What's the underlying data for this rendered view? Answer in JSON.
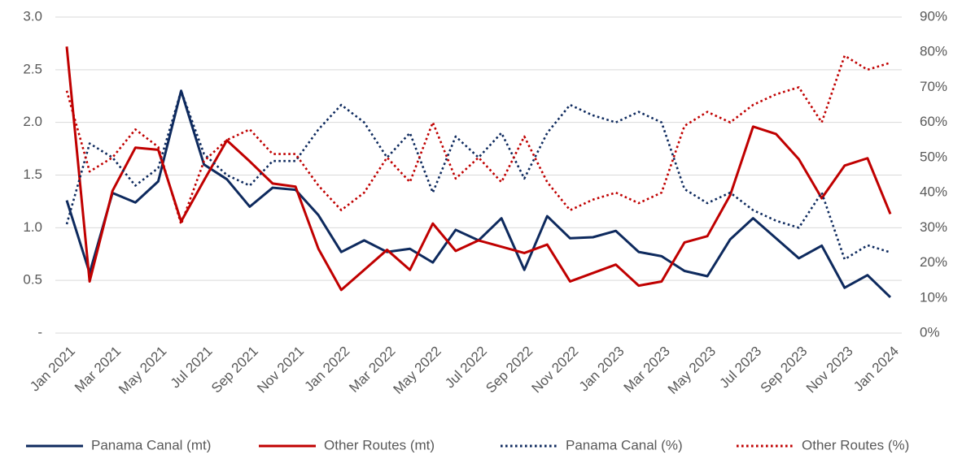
{
  "chart_data": {
    "type": "line",
    "categories": [
      "Jan 2021",
      null,
      "Mar 2021",
      null,
      "May 2021",
      null,
      "Jul 2021",
      null,
      "Sep 2021",
      null,
      "Nov 2021",
      null,
      "Jan 2022",
      null,
      "Mar 2022",
      null,
      "May 2022",
      null,
      "Jul 2022",
      null,
      "Sep 2022",
      null,
      "Nov 2022",
      null,
      "Jan 2023",
      null,
      "Mar 2023",
      null,
      "May 2023",
      null,
      "Jul 2023",
      null,
      "Sep 2023",
      null,
      "Nov 2023",
      null,
      "Jan 2024"
    ],
    "series": [
      {
        "name": "Panama Canal (mt)",
        "color": "#0e2a5e",
        "style": "solid",
        "values": [
          1.26,
          0.57,
          1.33,
          1.24,
          1.44,
          2.3,
          1.6,
          1.46,
          1.2,
          1.38,
          1.36,
          1.12,
          0.77,
          0.88,
          0.77,
          0.8,
          0.67,
          0.98,
          0.88,
          1.09,
          0.6,
          1.11,
          0.9,
          0.91,
          0.97,
          0.77,
          0.73,
          0.59,
          0.54,
          0.89,
          1.09,
          0.9,
          0.71,
          0.83,
          0.43,
          0.55,
          0.34
        ]
      },
      {
        "name": "Other Routes (mt)",
        "color": "#c00000",
        "style": "solid",
        "values": [
          2.72,
          0.49,
          1.35,
          1.76,
          1.74,
          1.06,
          1.45,
          1.83,
          1.63,
          1.42,
          1.39,
          0.8,
          0.41,
          0.6,
          0.79,
          0.6,
          1.04,
          0.78,
          0.88,
          0.82,
          0.76,
          0.84,
          0.49,
          0.57,
          0.65,
          0.45,
          0.49,
          0.86,
          0.92,
          1.31,
          1.96,
          1.89,
          1.65,
          1.28,
          1.59,
          1.66,
          1.13
        ]
      },
      {
        "name": "Panama Canal (%)",
        "color": "#0e2a5e",
        "style": "dotted",
        "axis": "y2",
        "values": [
          31,
          54,
          50,
          42,
          47,
          69,
          51,
          45,
          42,
          49,
          49,
          58,
          65,
          60,
          50,
          57,
          40,
          56,
          50,
          57,
          44,
          57,
          65,
          62,
          60,
          63,
          60,
          41,
          37,
          40,
          35,
          32,
          30,
          40,
          21,
          25,
          23
        ]
      },
      {
        "name": "Other Routes (%)",
        "color": "#c00000",
        "style": "dotted",
        "axis": "y2",
        "values": [
          69,
          46,
          50,
          58,
          53,
          31,
          49,
          55,
          58,
          51,
          51,
          42,
          35,
          40,
          50,
          43,
          60,
          44,
          50,
          43,
          56,
          43,
          35,
          38,
          40,
          37,
          40,
          59,
          63,
          60,
          65,
          68,
          70,
          60,
          79,
          75,
          77
        ]
      }
    ],
    "ylim": [
      0,
      3
    ],
    "yticks": [
      {
        "value": 0,
        "label": "-"
      },
      0.5,
      {
        "value": 1,
        "label": "1.0"
      },
      1.5,
      {
        "value": 2,
        "label": "2.0"
      },
      2.5,
      {
        "value": 3,
        "label": "3.0"
      }
    ],
    "y2lim": [
      0,
      90
    ],
    "y2ticks": [
      {
        "value": 0,
        "label": "0%"
      },
      {
        "value": 10,
        "label": "10%"
      },
      {
        "value": 20,
        "label": "20%"
      },
      {
        "value": 30,
        "label": "30%"
      },
      {
        "value": 40,
        "label": "40%"
      },
      {
        "value": 50,
        "label": "50%"
      },
      {
        "value": 60,
        "label": "60%"
      },
      {
        "value": 70,
        "label": "70%"
      },
      {
        "value": 80,
        "label": "80%"
      },
      {
        "value": 90,
        "label": "90%"
      }
    ],
    "grid": true,
    "legend": "bottom"
  }
}
